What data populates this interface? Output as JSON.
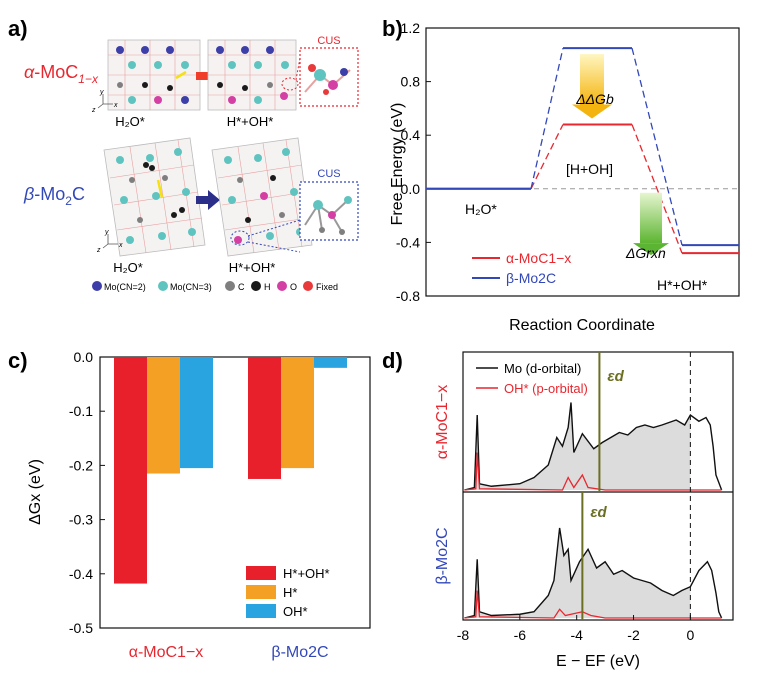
{
  "panels": {
    "a": "a)",
    "b": "b)",
    "c": "c)",
    "d": "d)"
  },
  "colors": {
    "alpha": "#e8272f",
    "beta": "#3348b8",
    "hoh": "#e8202c",
    "h": "#f3a024",
    "oh": "#2aa4e0",
    "gb": "#f4c20f",
    "grxn": "#6dbb3f",
    "eps": "#6b6f22"
  },
  "panel_a": {
    "alpha_label": {
      "sym": "α",
      "main": "-MoC",
      "sub": "1−x"
    },
    "beta_label": {
      "sym": "β",
      "main": "-Mo",
      "sub": "2",
      "tail": "C"
    },
    "cus": "CUS",
    "state_h2o": "H₂O*",
    "state_hoh": "H*+OH*",
    "legend": [
      "Mo(CN=2)",
      "Mo(CN=3)",
      "C",
      "H",
      "O",
      "Fixed"
    ],
    "legend_colors": [
      "#3d3fa8",
      "#5fc4bf",
      "#7f7f7f",
      "#1a1a1a",
      "#d43fa3",
      "#e83a3a"
    ]
  },
  "chart_data": [
    {
      "id": "b",
      "type": "line",
      "title": "",
      "xlabel": "Reaction Coordinate",
      "ylabel": "Free Energy (eV)",
      "ylim": [
        -0.8,
        1.2
      ],
      "yticks": [
        "1.2",
        "0.8",
        "0.4",
        "0.0",
        "-0.4",
        "-0.8"
      ],
      "tick_values": [
        1.2,
        0.8,
        0.4,
        0.0,
        -0.4,
        -0.8
      ],
      "levels": [
        0.0,
        1.05,
        0.48,
        -0.47
      ],
      "series": [
        {
          "name": "α-MoC1−x",
          "values": [
            0.0,
            0.48,
            0.48,
            -0.48
          ]
        },
        {
          "name": "β-Mo2C",
          "values": [
            0.0,
            1.05,
            1.05,
            -0.42
          ]
        }
      ],
      "annotations": {
        "h2o": "H₂O*",
        "hoh_mid": "[H+OH]",
        "hoh_end": "H*+OH*",
        "gb": "ΔGb",
        "grxn": "ΔGrxn"
      },
      "legend": [
        "α-MoC1−x",
        "β-Mo2C"
      ]
    },
    {
      "id": "c",
      "type": "bar",
      "title": "",
      "xlabel": "",
      "ylabel": "ΔGx (eV)",
      "ylim": [
        -0.5,
        0.0
      ],
      "yticks": [
        "0.0",
        "-0.1",
        "-0.2",
        "-0.3",
        "-0.4",
        "-0.5"
      ],
      "tick_values": [
        0.0,
        -0.1,
        -0.2,
        -0.3,
        -0.4,
        -0.5
      ],
      "categories": [
        "α-MoC1−x",
        "β-Mo2C"
      ],
      "series": [
        {
          "name": "H*+OH*",
          "values": [
            -0.418,
            -0.225
          ]
        },
        {
          "name": "H*",
          "values": [
            -0.215,
            -0.205
          ]
        },
        {
          "name": "OH*",
          "values": [
            -0.205,
            -0.02
          ]
        }
      ],
      "legend": [
        "H*+OH*",
        "H*",
        "OH*"
      ]
    },
    {
      "id": "d",
      "type": "area",
      "title": "",
      "xlabel": "E − EF (eV)",
      "ylabel": "",
      "xlim": [
        -8,
        1.5
      ],
      "xticks": [
        "-8",
        "-6",
        "-4",
        "-2",
        "0"
      ],
      "tick_values": [
        -8,
        -6,
        -4,
        -2,
        0
      ],
      "legend": [
        "Mo (d-orbital)",
        "OH* (p-orbital)"
      ],
      "eps_label": "εd",
      "subplots": [
        {
          "name": "α-MoC1−x",
          "eps_d": -3.2,
          "mo_d": [
            [
              -7.95,
              0.0
            ],
            [
              -7.6,
              0.02
            ],
            [
              -7.5,
              0.6
            ],
            [
              -7.42,
              0.05
            ],
            [
              -7.0,
              0.03
            ],
            [
              -6.0,
              0.05
            ],
            [
              -5.5,
              0.1
            ],
            [
              -5.0,
              0.2
            ],
            [
              -4.7,
              0.42
            ],
            [
              -4.5,
              0.35
            ],
            [
              -4.3,
              0.5
            ],
            [
              -4.2,
              0.7
            ],
            [
              -4.1,
              0.3
            ],
            [
              -3.8,
              0.45
            ],
            [
              -3.4,
              0.33
            ],
            [
              -3.1,
              0.38
            ],
            [
              -2.8,
              0.42
            ],
            [
              -2.5,
              0.46
            ],
            [
              -2.2,
              0.44
            ],
            [
              -1.9,
              0.5
            ],
            [
              -1.6,
              0.52
            ],
            [
              -1.3,
              0.5
            ],
            [
              -1.0,
              0.52
            ],
            [
              -0.5,
              0.56
            ],
            [
              -0.2,
              0.52
            ],
            [
              0.0,
              0.6
            ],
            [
              0.3,
              0.55
            ],
            [
              0.55,
              0.58
            ],
            [
              0.7,
              0.52
            ],
            [
              0.8,
              0.35
            ],
            [
              0.9,
              0.12
            ],
            [
              1.1,
              0.0
            ]
          ],
          "oh_p": [
            [
              -7.95,
              0.0
            ],
            [
              -7.55,
              0.01
            ],
            [
              -7.5,
              0.3
            ],
            [
              -7.42,
              0.01
            ],
            [
              -4.5,
              0.0
            ],
            [
              -4.3,
              0.1
            ],
            [
              -4.1,
              0.02
            ],
            [
              -3.8,
              0.12
            ],
            [
              -3.6,
              0.02
            ],
            [
              -3.0,
              0.0
            ],
            [
              1.1,
              0.0
            ]
          ]
        },
        {
          "name": "β-Mo2C",
          "eps_d": -3.8,
          "mo_d": [
            [
              -7.95,
              0.0
            ],
            [
              -7.6,
              0.02
            ],
            [
              -7.5,
              0.47
            ],
            [
              -7.42,
              0.05
            ],
            [
              -7.0,
              0.02
            ],
            [
              -6.0,
              0.03
            ],
            [
              -5.5,
              0.05
            ],
            [
              -5.0,
              0.18
            ],
            [
              -4.8,
              0.3
            ],
            [
              -4.6,
              0.72
            ],
            [
              -4.45,
              0.5
            ],
            [
              -4.3,
              0.55
            ],
            [
              -4.2,
              0.3
            ],
            [
              -3.9,
              0.45
            ],
            [
              -3.6,
              0.55
            ],
            [
              -3.3,
              0.4
            ],
            [
              -3.0,
              0.45
            ],
            [
              -2.7,
              0.35
            ],
            [
              -2.4,
              0.38
            ],
            [
              -2.0,
              0.32
            ],
            [
              -1.7,
              0.3
            ],
            [
              -1.4,
              0.28
            ],
            [
              -1.0,
              0.22
            ],
            [
              -0.6,
              0.18
            ],
            [
              -0.3,
              0.22
            ],
            [
              0.0,
              0.25
            ],
            [
              0.3,
              0.38
            ],
            [
              0.6,
              0.45
            ],
            [
              0.75,
              0.38
            ],
            [
              0.9,
              0.2
            ],
            [
              1.0,
              0.05
            ],
            [
              1.1,
              0.0
            ]
          ],
          "oh_p": [
            [
              -7.95,
              0.0
            ],
            [
              -7.55,
              0.01
            ],
            [
              -7.5,
              0.22
            ],
            [
              -7.42,
              0.01
            ],
            [
              -4.8,
              0.0
            ],
            [
              -4.6,
              0.07
            ],
            [
              -4.4,
              0.02
            ],
            [
              -3.8,
              0.05
            ],
            [
              -3.5,
              0.02
            ],
            [
              -3.0,
              0.0
            ],
            [
              1.1,
              0.0
            ]
          ]
        }
      ]
    }
  ]
}
